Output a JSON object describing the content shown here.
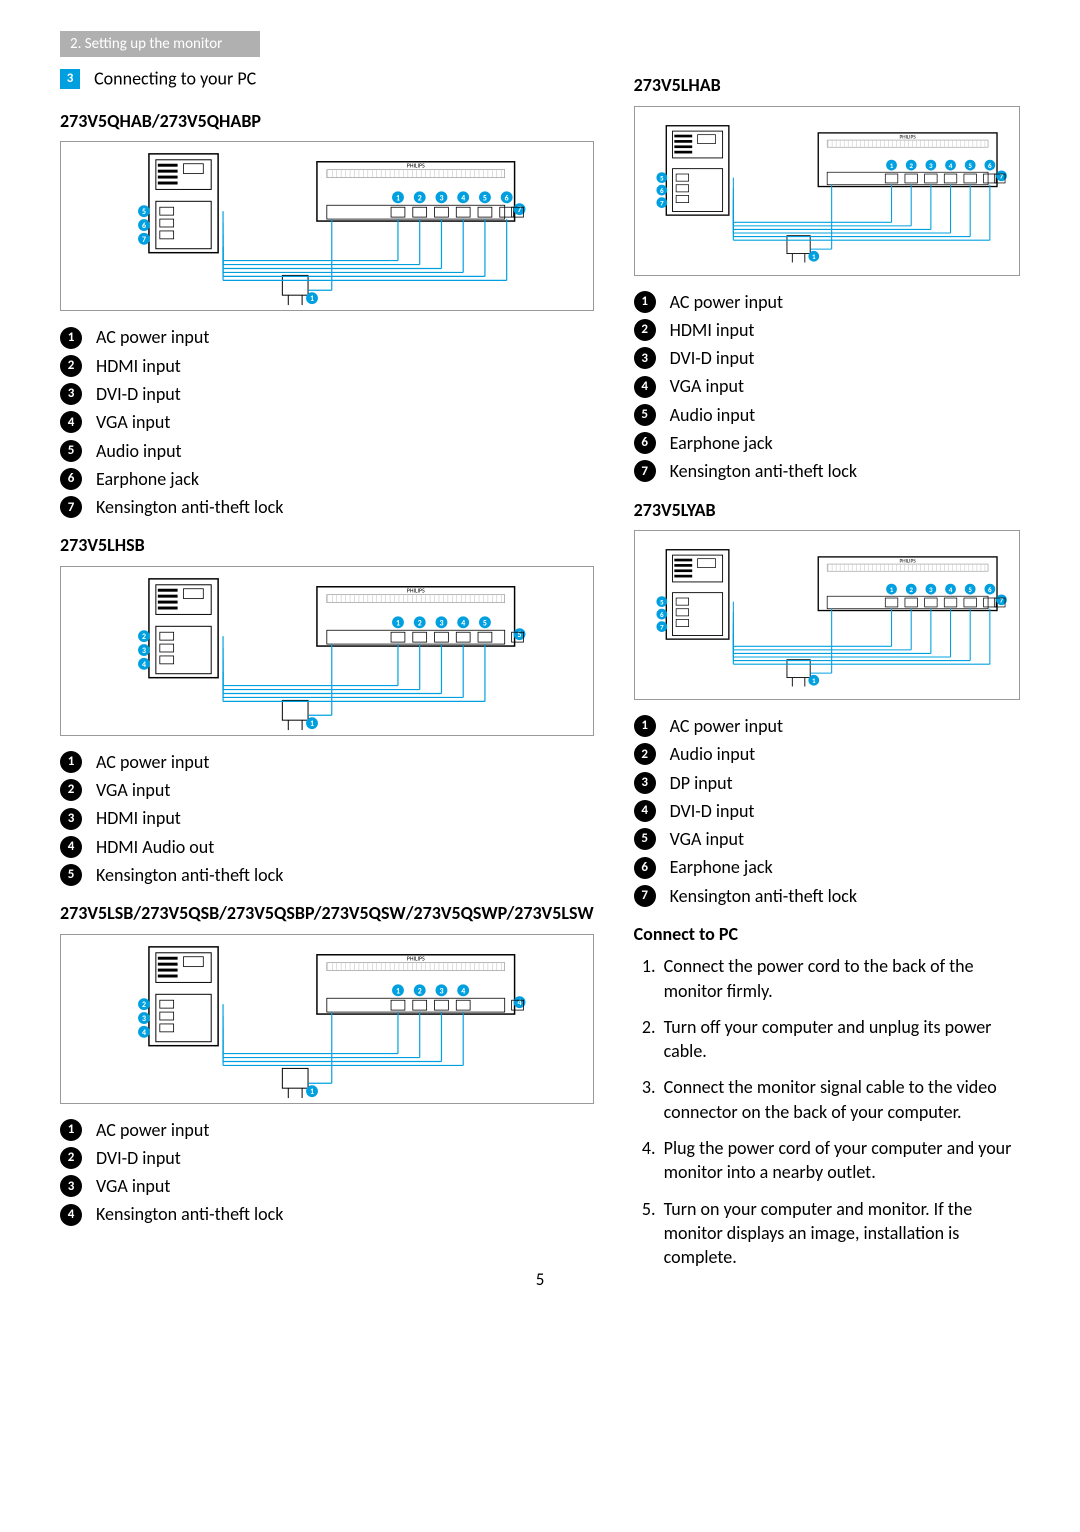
{
  "breadcrumb": "2. Setting up the monitor",
  "section": {
    "number": "3",
    "title": "Connecting to your PC"
  },
  "page_number": "5",
  "colors": {
    "accent": "#00a0e0",
    "bullet_bg": "#000000",
    "bullet_fg": "#ffffff",
    "breadcrumb_bg": "#b0b0b0",
    "diagram_border": "#999999"
  },
  "models": {
    "a": {
      "name": "273V5QHAB/273V5QHABP",
      "items": [
        "AC power input",
        "HDMI input",
        "DVI-D input",
        "VGA input",
        "Audio input",
        "Earphone jack",
        "Kensington anti-theft lock"
      ]
    },
    "b": {
      "name": "273V5LHSB",
      "items": [
        "AC power input",
        "VGA input",
        "HDMI input",
        "HDMI Audio out",
        "Kensington anti-theft lock"
      ]
    },
    "c": {
      "name": "273V5LSB/273V5QSB/273V5QSBP/273V5QSW/273V5QSWP/273V5LSW",
      "items": [
        "AC power input",
        "DVI-D input",
        "VGA input",
        "Kensington anti-theft lock"
      ]
    },
    "d": {
      "name": "273V5LHAB",
      "items": [
        "AC power input",
        "HDMI input",
        "DVI-D input",
        "VGA input",
        "Audio input",
        "Earphone jack",
        "Kensington anti-theft lock"
      ]
    },
    "e": {
      "name": "273V5LYAB",
      "items": [
        "AC power input",
        "Audio input",
        "DP input",
        "DVI-D input",
        "VGA input",
        "Earphone jack",
        "Kensington anti-theft lock"
      ]
    }
  },
  "connect": {
    "heading": "Connect to PC",
    "steps": [
      "Connect the power cord to the back of the monitor firmly.",
      "Turn off your computer and unplug its power cable.",
      "Connect the monitor signal cable to the video connector on the back of your computer.",
      "Plug the power cord of your computer and your monitor into a nearby outlet.",
      "Turn on your computer and monitor. If the monitor displays an image,  installation is complete."
    ]
  },
  "diagram_style": {
    "tower_fill": "#ffffff",
    "tower_stroke": "#000000",
    "monitor_stroke": "#000000",
    "cable_color": "#00a0e0",
    "callout_bg": "#00a0e0",
    "callout_fg": "#ffffff",
    "brand_text": "PHILIPS"
  }
}
